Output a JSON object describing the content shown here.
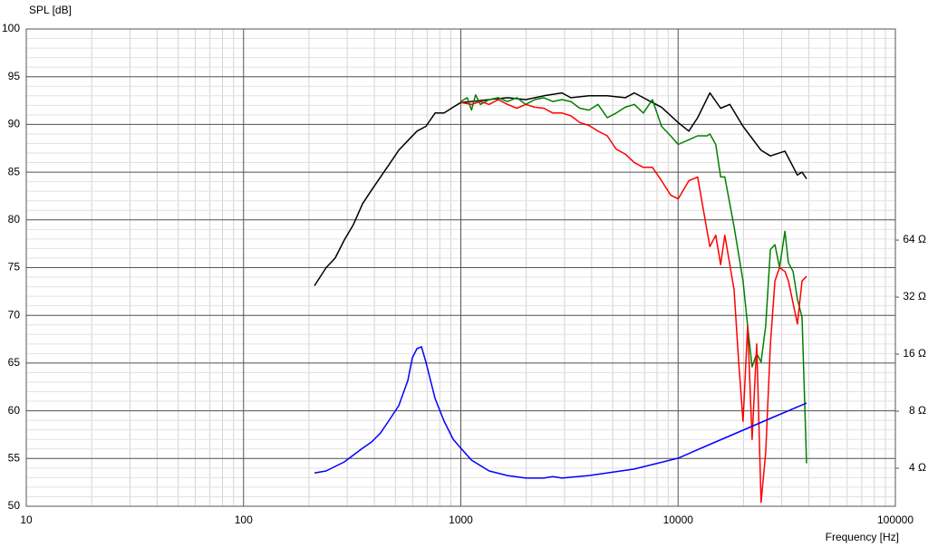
{
  "chart_data": {
    "type": "line",
    "y_label": "SPL [dB]",
    "x_label": "Frequency [Hz]",
    "xscale": "log",
    "y2scale": "log",
    "grid": true,
    "xlim": [
      10,
      100000
    ],
    "xticks": [
      10,
      100,
      1000,
      10000,
      100000
    ],
    "ylim": [
      50,
      100
    ],
    "yticks": [
      50,
      55,
      60,
      65,
      70,
      75,
      80,
      85,
      90,
      95,
      100
    ],
    "y2lim": [
      2.52,
      832
    ],
    "y2ticks": [
      {
        "value": 4,
        "label": "4 Ω"
      },
      {
        "value": 8,
        "label": "8 Ω"
      },
      {
        "value": 16,
        "label": "16 Ω"
      },
      {
        "value": 32,
        "label": "32 Ω"
      },
      {
        "value": 64,
        "label": "64 Ω"
      }
    ],
    "series": [
      {
        "color": "#000000",
        "x": [
          212,
          240,
          264,
          291,
          320,
          353,
          388,
          427,
          471,
          518,
          570,
          628,
          691,
          761,
          837,
          922,
          1000,
          1120,
          1350,
          1640,
          1990,
          2410,
          2920,
          3210,
          3890,
          4720,
          5710,
          6290,
          6920,
          7620,
          8390,
          10000,
          11200,
          12300,
          14000,
          15700,
          17300,
          19900,
          24100,
          26600,
          31000,
          35400,
          37200,
          39000
        ],
        "values": [
          73.1,
          75.0,
          76.0,
          77.9,
          79.5,
          81.7,
          83.1,
          84.5,
          85.9,
          87.3,
          88.3,
          89.3,
          89.8,
          91.2,
          91.2,
          91.8,
          92.3,
          92.4,
          92.6,
          92.8,
          92.6,
          93.0,
          93.3,
          92.8,
          93.0,
          93.0,
          92.8,
          93.3,
          92.8,
          92.3,
          91.8,
          90.2,
          89.3,
          90.7,
          93.3,
          91.7,
          92.1,
          89.8,
          87.3,
          86.7,
          87.2,
          84.7,
          85.0,
          84.3
        ]
      },
      {
        "color": "#008000",
        "x": [
          1000,
          1070,
          1120,
          1170,
          1230,
          1350,
          1490,
          1640,
          1810,
          1990,
          2190,
          2410,
          2650,
          2920,
          3210,
          3530,
          3890,
          4280,
          4720,
          5190,
          5710,
          6290,
          6920,
          7620,
          8390,
          9240,
          10000,
          11200,
          12300,
          13600,
          14000,
          14900,
          15700,
          16400,
          18100,
          19900,
          20900,
          21900,
          23000,
          24100,
          25300,
          26600,
          27900,
          29300,
          31000,
          32200,
          33800,
          35400,
          37200,
          39000
        ],
        "values": [
          92.4,
          92.8,
          91.5,
          93.1,
          92.1,
          92.6,
          92.8,
          92.4,
          92.8,
          92.1,
          92.6,
          92.8,
          92.4,
          92.6,
          92.4,
          91.7,
          91.5,
          92.1,
          90.7,
          91.2,
          91.8,
          92.1,
          91.2,
          92.6,
          89.8,
          88.8,
          87.9,
          88.4,
          88.8,
          88.8,
          89.0,
          87.9,
          84.5,
          84.5,
          79.3,
          73.6,
          68.9,
          64.6,
          66.0,
          65.1,
          68.9,
          76.9,
          77.4,
          75.0,
          78.8,
          75.5,
          74.6,
          71.7,
          69.8,
          54.5
        ]
      },
      {
        "color": "#ff0000",
        "x": [
          1000,
          1120,
          1230,
          1350,
          1490,
          1640,
          1810,
          1990,
          2190,
          2410,
          2650,
          2920,
          3210,
          3530,
          3890,
          4280,
          4720,
          5190,
          5710,
          6290,
          6920,
          7620,
          8390,
          9240,
          10000,
          11200,
          12300,
          13600,
          14000,
          14900,
          15700,
          16400,
          18100,
          19000,
          19900,
          20900,
          21900,
          23000,
          24100,
          25300,
          26600,
          27900,
          29300,
          31000,
          32200,
          35400,
          37200,
          39000
        ],
        "values": [
          92.3,
          92.1,
          92.4,
          92.1,
          92.6,
          92.1,
          91.7,
          92.1,
          91.8,
          91.7,
          91.2,
          91.2,
          90.9,
          90.2,
          89.9,
          89.3,
          88.8,
          87.4,
          86.9,
          86.0,
          85.5,
          85.5,
          84.1,
          82.6,
          82.2,
          84.1,
          84.5,
          78.8,
          77.2,
          78.4,
          75.3,
          78.4,
          72.7,
          65.1,
          58.9,
          68.9,
          57.0,
          67.0,
          50.4,
          55.6,
          67.0,
          73.6,
          75.0,
          74.6,
          73.6,
          69.1,
          73.6,
          74.1
        ]
      },
      {
        "color": "#0000ff",
        "axis": "y2",
        "x": [
          212,
          240,
          291,
          353,
          388,
          427,
          471,
          518,
          570,
          598,
          628,
          659,
          691,
          761,
          837,
          922,
          1000,
          1120,
          1350,
          1640,
          1990,
          2410,
          2650,
          2920,
          3890,
          6290,
          10000,
          13600,
          19900,
          26600,
          39000
        ],
        "values": [
          3.78,
          3.87,
          4.32,
          5.1,
          5.5,
          6.14,
          7.25,
          8.55,
          11.6,
          15.3,
          17.1,
          17.5,
          14.5,
          9.33,
          7.09,
          5.69,
          5.1,
          4.41,
          3.87,
          3.66,
          3.55,
          3.55,
          3.61,
          3.55,
          3.66,
          3.96,
          4.52,
          5.27,
          6.35,
          7.33,
          8.83
        ]
      }
    ]
  }
}
